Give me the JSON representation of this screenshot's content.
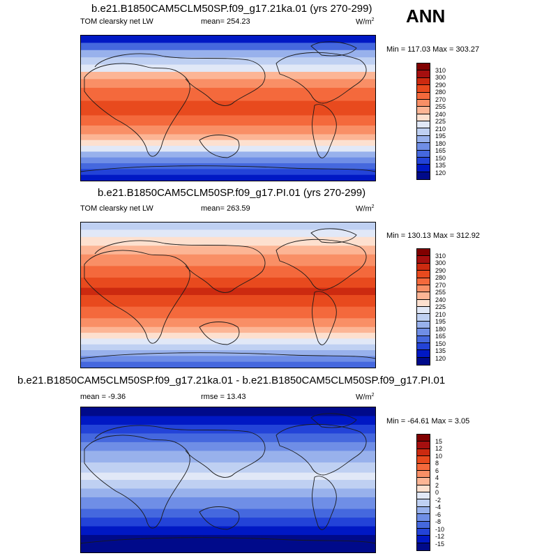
{
  "season": "ANN",
  "chart_data": [
    {
      "type": "heatmap",
      "title": "b.e21.B1850CAM5CLM50SP.f09_g17.21ka.01 (yrs 270-299)",
      "left_label": "TOM clearsky net LW",
      "mean_label": "mean= 254.23",
      "units": "W/m",
      "units_sup": "2",
      "minmax_label": "Min = 117.03 Max = 303.27",
      "min": 117.03,
      "max": 303.27,
      "mean": 254.23,
      "colorbar_levels": [
        "310",
        "300",
        "290",
        "280",
        "270",
        "255",
        "240",
        "225",
        "210",
        "195",
        "180",
        "165",
        "150",
        "135",
        "120"
      ],
      "colors": [
        "#800000",
        "#a50f0f",
        "#cc2a10",
        "#e84a1e",
        "#f4693c",
        "#f98f66",
        "#fcb595",
        "#fde0cf",
        "#e1e8f7",
        "#bfd0f2",
        "#98b1ec",
        "#6f8ee6",
        "#4568de",
        "#2343d8",
        "#0018c4",
        "#000a8a"
      ]
    },
    {
      "type": "heatmap",
      "title": "b.e21.B1850CAM5CLM50SP.f09_g17.PI.01 (yrs 270-299)",
      "left_label": "TOM clearsky net LW",
      "mean_label": "mean= 263.59",
      "units": "W/m",
      "units_sup": "2",
      "minmax_label": "Min = 130.13 Max = 312.92",
      "min": 130.13,
      "max": 312.92,
      "mean": 263.59,
      "colorbar_levels": [
        "310",
        "300",
        "290",
        "280",
        "270",
        "255",
        "240",
        "225",
        "210",
        "195",
        "180",
        "165",
        "150",
        "135",
        "120"
      ],
      "colors": [
        "#800000",
        "#a50f0f",
        "#cc2a10",
        "#e84a1e",
        "#f4693c",
        "#f98f66",
        "#fcb595",
        "#fde0cf",
        "#e1e8f7",
        "#bfd0f2",
        "#98b1ec",
        "#6f8ee6",
        "#4568de",
        "#2343d8",
        "#0018c4",
        "#000a8a"
      ]
    },
    {
      "type": "heatmap",
      "title": "b.e21.B1850CAM5CLM50SP.f09_g17.21ka.01 - b.e21.B1850CAM5CLM50SP.f09_g17.PI.01",
      "mean_label": "mean =  -9.36",
      "rmse_label": "rmse =  13.43",
      "units": "W/m",
      "units_sup": "2",
      "minmax_label": "Min = -64.61 Max =   3.05",
      "min": -64.61,
      "max": 3.05,
      "mean": -9.36,
      "rmse": 13.43,
      "colorbar_levels": [
        "15",
        "12",
        "10",
        "8",
        "6",
        "4",
        "2",
        "0",
        "-2",
        "-4",
        "-6",
        "-8",
        "-10",
        "-12",
        "-15"
      ],
      "colors": [
        "#800000",
        "#a50f0f",
        "#cc2a10",
        "#e84a1e",
        "#f4693c",
        "#f98f66",
        "#fcb595",
        "#fde0cf",
        "#e1e8f7",
        "#bfd0f2",
        "#98b1ec",
        "#6f8ee6",
        "#4568de",
        "#2343d8",
        "#0018c4",
        "#000a8a"
      ]
    }
  ]
}
